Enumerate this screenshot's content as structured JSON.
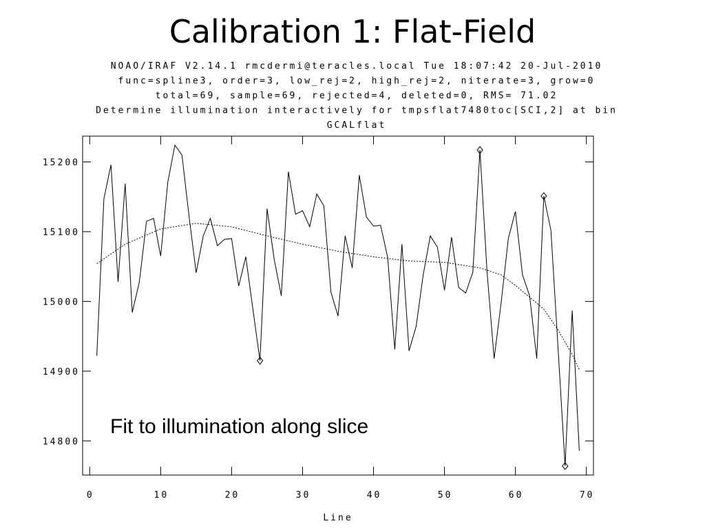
{
  "chart_data": {
    "type": "line",
    "title": "Calibration 1: Flat-Field",
    "header": [
      "NOAO/IRAF V2.14.1 rmcdermi@teracles.local Tue 18:07:42 20-Jul-2010",
      "func=spline3, order=3, low_rej=2, high_rej=2, niterate=3, grow=0",
      "total=69, sample=69, rejected=4, deleted=0, RMS=  71.02",
      "Determine illumination interactively for tmpsflat7480toc[SCI,2] at bin",
      "GCALflat"
    ],
    "annotation": "Fit to illumination along slice",
    "xlabel": "Line",
    "x": [
      1,
      2,
      3,
      4,
      5,
      6,
      7,
      8,
      9,
      10,
      11,
      12,
      13,
      14,
      15,
      16,
      17,
      18,
      19,
      20,
      21,
      22,
      23,
      24,
      25,
      26,
      27,
      28,
      29,
      30,
      31,
      32,
      33,
      34,
      35,
      36,
      37,
      38,
      39,
      40,
      41,
      42,
      43,
      44,
      45,
      46,
      47,
      48,
      49,
      50,
      51,
      52,
      53,
      54,
      55,
      56,
      57,
      58,
      59,
      60,
      61,
      62,
      63,
      64,
      65,
      66,
      67,
      68,
      69
    ],
    "values": [
      14922,
      15147,
      15196,
      15028,
      15169,
      14984,
      15028,
      15115,
      15119,
      15065,
      15171,
      15224,
      15210,
      15122,
      15041,
      15094,
      15119,
      15080,
      15089,
      15090,
      15022,
      15064,
      14989,
      14915,
      15133,
      15060,
      15008,
      15186,
      15125,
      15130,
      15107,
      15154,
      15137,
      15013,
      14979,
      15094,
      15048,
      15181,
      15121,
      15108,
      15109,
      15063,
      14931,
      15082,
      14929,
      14964,
      15038,
      15094,
      15078,
      15016,
      15092,
      15020,
      15012,
      15042,
      15217,
      15043,
      14918,
      14999,
      15090,
      15129,
      15038,
      15008,
      14918,
      15151,
      15102,
      14934,
      14764,
      14987,
      14786
    ],
    "fit": {
      "x": [
        1,
        5,
        10,
        15,
        20,
        25,
        30,
        35,
        40,
        45,
        50,
        55,
        58,
        60,
        62,
        64,
        66,
        68,
        69
      ],
      "values": [
        15054,
        15082,
        15104,
        15112,
        15107,
        15094,
        15082,
        15072,
        15064,
        15058,
        15056,
        15048,
        15038,
        15023,
        15006,
        14989,
        14959,
        14924,
        14902
      ]
    },
    "rejected": {
      "x": [
        24,
        55,
        64,
        67
      ],
      "values": [
        14915,
        15217,
        15151,
        14764
      ]
    },
    "color": "#000000",
    "xlim": [
      -1,
      71
    ],
    "xticks": [
      0,
      10,
      20,
      30,
      40,
      50,
      60,
      70
    ],
    "ylim": [
      14751,
      15237
    ],
    "yticks": [
      14800,
      14900,
      15000,
      15100,
      15200
    ]
  }
}
